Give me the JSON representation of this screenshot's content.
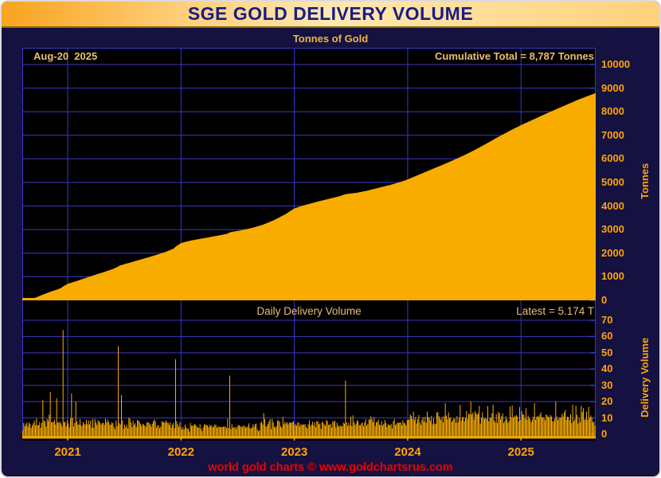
{
  "window": {
    "title": "SGE GOLD DELIVERY VOLUME",
    "subtitle": "Tonnes of Gold",
    "footer": "world gold charts © www.goldchartsrus.com"
  },
  "top_panel": {
    "date_label": "Aug-20  2025",
    "total_label": "Cumulative Total = 8,787 Tonnes",
    "axis_title": "Tonnes"
  },
  "bottom_panel": {
    "title": "Daily Delivery Volume",
    "latest_label": "Latest = 5.174 T",
    "axis_title": "Delivery Volume"
  },
  "colors": {
    "gold": "#F9AC00",
    "grid_blue": "#3838C8",
    "panel_black": "#000000",
    "body_navy": "#151140",
    "title_navy": "#1B1B85",
    "label_tan": "#E9BE74",
    "axis_orange": "#FFA405",
    "footer_red": "#EE0000"
  },
  "chart_data": [
    {
      "type": "area",
      "name": "cumulative-gold-delivery",
      "title": "Tonnes of Gold",
      "x_unit": "decimal_year",
      "xlim": [
        2020.6,
        2025.66
      ],
      "ylim": [
        0,
        10000
      ],
      "yticks": [
        0,
        1000,
        2000,
        3000,
        4000,
        5000,
        6000,
        7000,
        8000,
        9000,
        10000
      ],
      "xticks_years": [
        2021,
        2022,
        2023,
        2024,
        2025
      ],
      "as_of": "Aug-20 2025",
      "cumulative_total_tonnes": 8787,
      "grid": true,
      "legend": "none",
      "points": [
        [
          2020.6,
          0
        ],
        [
          2020.66,
          30
        ],
        [
          2020.72,
          120
        ],
        [
          2020.78,
          240
        ],
        [
          2020.84,
          350
        ],
        [
          2020.9,
          450
        ],
        [
          2020.94,
          520
        ],
        [
          2020.96,
          590
        ],
        [
          2021.0,
          700
        ],
        [
          2021.08,
          820
        ],
        [
          2021.16,
          950
        ],
        [
          2021.24,
          1080
        ],
        [
          2021.32,
          1200
        ],
        [
          2021.4,
          1330
        ],
        [
          2021.44,
          1420
        ],
        [
          2021.46,
          1480
        ],
        [
          2021.55,
          1600
        ],
        [
          2021.65,
          1740
        ],
        [
          2021.75,
          1880
        ],
        [
          2021.85,
          2030
        ],
        [
          2021.93,
          2180
        ],
        [
          2021.96,
          2300
        ],
        [
          2022.0,
          2430
        ],
        [
          2022.08,
          2530
        ],
        [
          2022.16,
          2600
        ],
        [
          2022.24,
          2670
        ],
        [
          2022.32,
          2740
        ],
        [
          2022.4,
          2810
        ],
        [
          2022.44,
          2900
        ],
        [
          2022.52,
          2960
        ],
        [
          2022.62,
          3060
        ],
        [
          2022.72,
          3200
        ],
        [
          2022.82,
          3400
        ],
        [
          2022.92,
          3650
        ],
        [
          2023.0,
          3900
        ],
        [
          2023.1,
          4050
        ],
        [
          2023.2,
          4180
        ],
        [
          2023.3,
          4300
        ],
        [
          2023.4,
          4420
        ],
        [
          2023.45,
          4500
        ],
        [
          2023.55,
          4560
        ],
        [
          2023.65,
          4660
        ],
        [
          2023.75,
          4780
        ],
        [
          2023.85,
          4900
        ],
        [
          2023.95,
          5040
        ],
        [
          2024.0,
          5130
        ],
        [
          2024.1,
          5330
        ],
        [
          2024.2,
          5530
        ],
        [
          2024.3,
          5730
        ],
        [
          2024.4,
          5940
        ],
        [
          2024.5,
          6160
        ],
        [
          2024.6,
          6400
        ],
        [
          2024.7,
          6660
        ],
        [
          2024.8,
          6930
        ],
        [
          2024.9,
          7190
        ],
        [
          2025.0,
          7430
        ],
        [
          2025.1,
          7650
        ],
        [
          2025.2,
          7870
        ],
        [
          2025.3,
          8080
        ],
        [
          2025.4,
          8290
        ],
        [
          2025.5,
          8500
        ],
        [
          2025.58,
          8650
        ],
        [
          2025.66,
          8787
        ]
      ]
    },
    {
      "type": "bar",
      "name": "daily-delivery-volume",
      "title": "Daily Delivery Volume",
      "x_unit": "decimal_year",
      "xlim": [
        2020.6,
        2025.66
      ],
      "ylim": [
        0,
        70
      ],
      "yticks": [
        0,
        10,
        20,
        30,
        40,
        50,
        60,
        70
      ],
      "latest_tonnes": 5.174,
      "bars_count": 540,
      "seed": 7,
      "baseline_segments": [
        {
          "until": 2021.0,
          "mean": 6.0,
          "amp": 3.5
        },
        {
          "until": 2021.5,
          "mean": 6.5,
          "amp": 3.5
        },
        {
          "until": 2022.0,
          "mean": 6.0,
          "amp": 3.5
        },
        {
          "until": 2022.7,
          "mean": 4.5,
          "amp": 2.5
        },
        {
          "until": 2023.0,
          "mean": 6.5,
          "amp": 3.0
        },
        {
          "until": 2023.5,
          "mean": 6.0,
          "amp": 3.0
        },
        {
          "until": 2024.0,
          "mean": 7.0,
          "amp": 3.5
        },
        {
          "until": 2024.6,
          "mean": 10.0,
          "amp": 4.5
        },
        {
          "until": 2025.1,
          "mean": 10.5,
          "amp": 4.5
        },
        {
          "until": 2025.66,
          "mean": 10.5,
          "amp": 4.5
        }
      ],
      "spikes": [
        [
          2020.78,
          21
        ],
        [
          2020.84,
          26
        ],
        [
          2020.9,
          22
        ],
        [
          2020.955,
          64
        ],
        [
          2021.03,
          25
        ],
        [
          2021.07,
          20
        ],
        [
          2021.44,
          54
        ],
        [
          2021.47,
          24
        ],
        [
          2021.95,
          46
        ],
        [
          2022.43,
          36
        ],
        [
          2023.45,
          33
        ],
        [
          2024.33,
          19
        ],
        [
          2024.55,
          20
        ],
        [
          2024.75,
          18
        ],
        [
          2024.9,
          17
        ],
        [
          2025.12,
          19
        ],
        [
          2025.3,
          20
        ],
        [
          2025.45,
          18
        ],
        [
          2025.55,
          16
        ]
      ]
    }
  ]
}
